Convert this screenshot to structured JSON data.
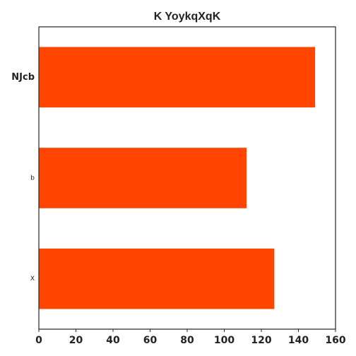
{
  "chart_data": {
    "type": "bar",
    "orientation": "horizontal",
    "title": "K YoykqXqK",
    "xlabel": "",
    "ylabel": "",
    "categories": [
      "NJcb",
      "b",
      "X"
    ],
    "values": [
      149,
      112,
      127
    ],
    "xlim": [
      0,
      160
    ],
    "xticks": [
      0,
      20,
      40,
      60,
      80,
      100,
      120,
      140,
      160
    ],
    "grid": false,
    "bar_color": "#FF4500"
  }
}
